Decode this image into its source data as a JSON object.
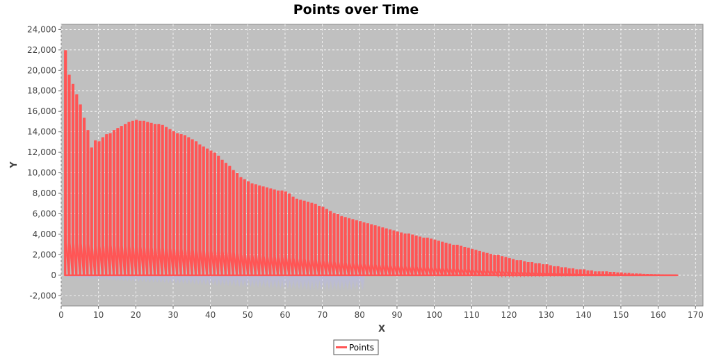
{
  "chart_data": {
    "type": "line",
    "title": "Points over Time",
    "xlabel": "X",
    "ylabel": "Y",
    "xlim": [
      0,
      172
    ],
    "ylim": [
      -3000,
      24500
    ],
    "x_ticks": [
      0,
      10,
      20,
      30,
      40,
      50,
      60,
      70,
      80,
      90,
      100,
      110,
      120,
      130,
      140,
      150,
      160,
      170
    ],
    "x_tick_labels": [
      "0",
      "10",
      "20",
      "30",
      "40",
      "50",
      "60",
      "70",
      "80",
      "90",
      "100",
      "110",
      "120",
      "130",
      "140",
      "150",
      "160",
      "170"
    ],
    "y_ticks": [
      -2000,
      0,
      2000,
      4000,
      6000,
      8000,
      10000,
      12000,
      14000,
      16000,
      18000,
      20000,
      22000,
      24000
    ],
    "y_tick_labels": [
      "-2,000",
      "0",
      "2,000",
      "4,000",
      "6,000",
      "8,000",
      "10,000",
      "12,000",
      "14,000",
      "16,000",
      "18,000",
      "20,000",
      "22,000",
      "24,000"
    ],
    "grid": true,
    "legend_position": "bottom-center",
    "plot_background": "#c0c0c0",
    "series": [
      {
        "name": "Points",
        "color": "#ff5555",
        "shadow_color": "#b8b8e0",
        "peaks": [
          [
            1,
            21900
          ],
          [
            2,
            19500
          ],
          [
            3,
            18600
          ],
          [
            4,
            17600
          ],
          [
            5,
            16600
          ],
          [
            6,
            15300
          ],
          [
            7,
            14100
          ],
          [
            8,
            12400
          ],
          [
            9,
            13100
          ],
          [
            10,
            13000
          ],
          [
            11,
            13400
          ],
          [
            12,
            13700
          ],
          [
            13,
            13800
          ],
          [
            14,
            14100
          ],
          [
            15,
            14300
          ],
          [
            16,
            14500
          ],
          [
            17,
            14700
          ],
          [
            18,
            14900
          ],
          [
            19,
            15000
          ],
          [
            20,
            15100
          ],
          [
            21,
            15000
          ],
          [
            22,
            15000
          ],
          [
            23,
            14900
          ],
          [
            24,
            14800
          ],
          [
            25,
            14700
          ],
          [
            26,
            14700
          ],
          [
            27,
            14600
          ],
          [
            28,
            14400
          ],
          [
            29,
            14200
          ],
          [
            30,
            14000
          ],
          [
            31,
            13800
          ],
          [
            32,
            13700
          ],
          [
            33,
            13600
          ],
          [
            34,
            13400
          ],
          [
            35,
            13200
          ],
          [
            36,
            13000
          ],
          [
            37,
            12700
          ],
          [
            38,
            12500
          ],
          [
            39,
            12300
          ],
          [
            40,
            12100
          ],
          [
            41,
            11900
          ],
          [
            42,
            11600
          ],
          [
            43,
            11200
          ],
          [
            44,
            10900
          ],
          [
            45,
            10600
          ],
          [
            46,
            10200
          ],
          [
            47,
            9900
          ],
          [
            48,
            9500
          ],
          [
            49,
            9300
          ],
          [
            50,
            9100
          ],
          [
            51,
            8900
          ],
          [
            52,
            8800
          ],
          [
            53,
            8700
          ],
          [
            54,
            8600
          ],
          [
            55,
            8500
          ],
          [
            56,
            8400
          ],
          [
            57,
            8300
          ],
          [
            58,
            8200
          ],
          [
            59,
            8200
          ],
          [
            60,
            8100
          ],
          [
            61,
            7900
          ],
          [
            62,
            7600
          ],
          [
            63,
            7400
          ],
          [
            64,
            7300
          ],
          [
            65,
            7200
          ],
          [
            66,
            7100
          ],
          [
            67,
            7000
          ],
          [
            68,
            6900
          ],
          [
            69,
            6700
          ],
          [
            70,
            6600
          ],
          [
            71,
            6400
          ],
          [
            72,
            6200
          ],
          [
            73,
            6000
          ],
          [
            74,
            5900
          ],
          [
            75,
            5700
          ],
          [
            76,
            5600
          ],
          [
            77,
            5500
          ],
          [
            78,
            5400
          ],
          [
            79,
            5300
          ],
          [
            80,
            5200
          ],
          [
            81,
            5100
          ],
          [
            82,
            5000
          ],
          [
            83,
            4900
          ],
          [
            84,
            4800
          ],
          [
            85,
            4700
          ],
          [
            86,
            4600
          ],
          [
            87,
            4500
          ],
          [
            88,
            4400
          ],
          [
            89,
            4300
          ],
          [
            90,
            4200
          ],
          [
            91,
            4100
          ],
          [
            92,
            4000
          ],
          [
            93,
            4000
          ],
          [
            94,
            3900
          ],
          [
            95,
            3800
          ],
          [
            96,
            3700
          ],
          [
            97,
            3600
          ],
          [
            98,
            3600
          ],
          [
            99,
            3500
          ],
          [
            100,
            3400
          ],
          [
            101,
            3300
          ],
          [
            102,
            3200
          ],
          [
            103,
            3100
          ],
          [
            104,
            3000
          ],
          [
            105,
            2900
          ],
          [
            106,
            2900
          ],
          [
            107,
            2800
          ],
          [
            108,
            2700
          ],
          [
            109,
            2600
          ],
          [
            110,
            2500
          ],
          [
            111,
            2400
          ],
          [
            112,
            2300
          ],
          [
            113,
            2200
          ],
          [
            114,
            2100
          ],
          [
            115,
            2000
          ],
          [
            116,
            1900
          ],
          [
            117,
            1900
          ],
          [
            118,
            1800
          ],
          [
            119,
            1700
          ],
          [
            120,
            1600
          ],
          [
            121,
            1500
          ],
          [
            122,
            1400
          ],
          [
            123,
            1400
          ],
          [
            124,
            1300
          ],
          [
            125,
            1200
          ],
          [
            126,
            1200
          ],
          [
            127,
            1100
          ],
          [
            128,
            1100
          ],
          [
            129,
            1000
          ],
          [
            130,
            1000
          ],
          [
            131,
            900
          ],
          [
            132,
            800
          ],
          [
            133,
            800
          ],
          [
            134,
            700
          ],
          [
            135,
            700
          ],
          [
            136,
            600
          ],
          [
            137,
            600
          ],
          [
            138,
            500
          ],
          [
            139,
            500
          ],
          [
            140,
            500
          ],
          [
            141,
            400
          ],
          [
            142,
            400
          ],
          [
            143,
            300
          ],
          [
            144,
            300
          ],
          [
            145,
            300
          ],
          [
            146,
            300
          ],
          [
            147,
            250
          ],
          [
            148,
            250
          ],
          [
            149,
            200
          ],
          [
            150,
            200
          ],
          [
            151,
            150
          ],
          [
            152,
            150
          ],
          [
            153,
            100
          ],
          [
            154,
            100
          ],
          [
            155,
            80
          ],
          [
            156,
            60
          ],
          [
            157,
            50
          ],
          [
            158,
            40
          ],
          [
            159,
            30
          ],
          [
            160,
            20
          ],
          [
            161,
            15
          ],
          [
            162,
            10
          ],
          [
            163,
            5
          ],
          [
            164,
            0
          ],
          [
            165,
            0
          ]
        ]
      }
    ]
  }
}
